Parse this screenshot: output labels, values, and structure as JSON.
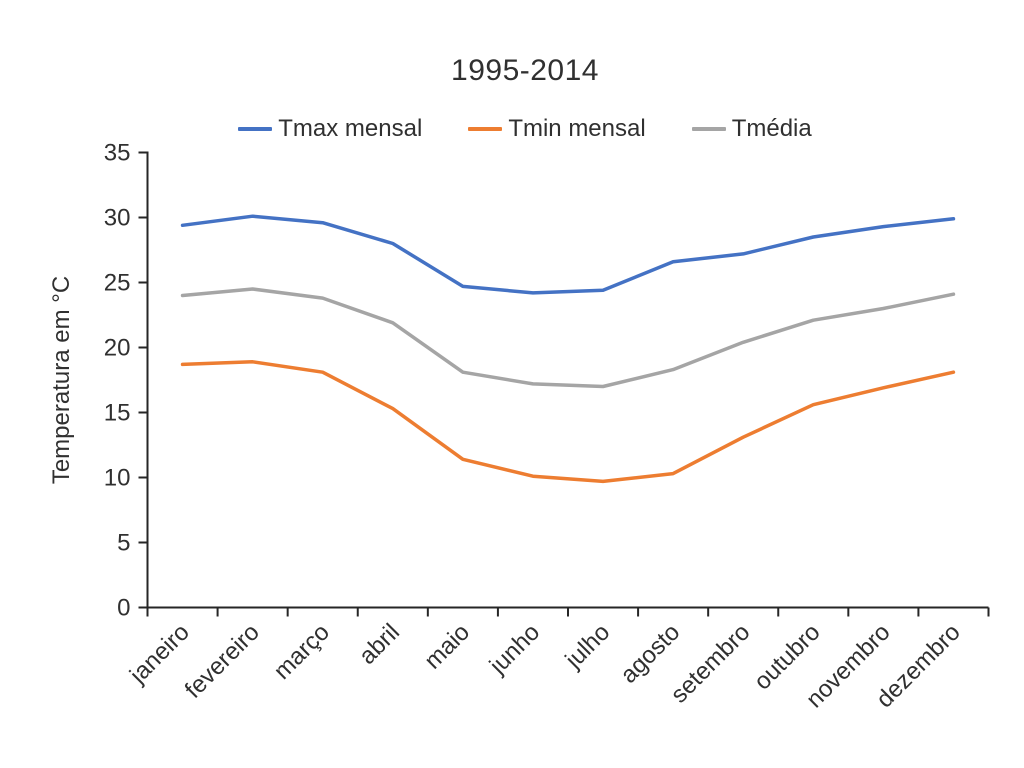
{
  "chart_data": {
    "type": "line",
    "title": "1995-2014",
    "xlabel": "",
    "ylabel": "Temperatura em °C",
    "ylim": [
      0,
      35
    ],
    "ytick_step": 5,
    "grid": false,
    "legend_position": "top",
    "axis_color": "#262626",
    "text_color": "#303030",
    "categories": [
      "janeiro",
      "fevereiro",
      "março",
      "abril",
      "maio",
      "junho",
      "julho",
      "agosto",
      "setembro",
      "outubro",
      "novembro",
      "dezembro"
    ],
    "series": [
      {
        "name": "Tmax mensal",
        "color": "#4472C4",
        "values": [
          29.4,
          30.1,
          29.6,
          28.0,
          24.7,
          24.2,
          24.4,
          26.6,
          27.2,
          28.5,
          29.3,
          29.9
        ]
      },
      {
        "name": "Tmin mensal",
        "color": "#ED7D31",
        "values": [
          18.7,
          18.9,
          18.1,
          15.3,
          11.4,
          10.1,
          9.7,
          10.3,
          13.1,
          15.6,
          16.9,
          18.1
        ]
      },
      {
        "name": "Tmédia",
        "color": "#A5A5A5",
        "values": [
          24.0,
          24.5,
          23.8,
          21.9,
          18.1,
          17.2,
          17.0,
          18.3,
          20.4,
          22.1,
          23.0,
          24.1
        ]
      }
    ]
  }
}
